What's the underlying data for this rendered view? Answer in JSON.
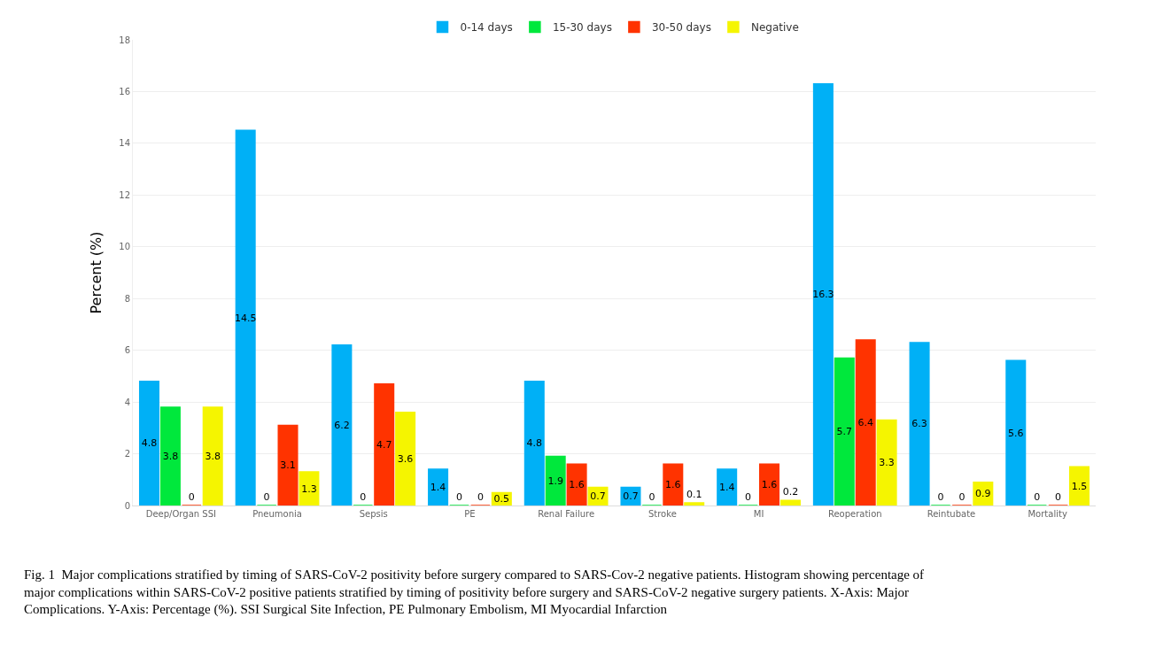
{
  "chart_data": {
    "type": "bar",
    "categories": [
      "Deep/Organ SSI",
      "Pneumonia",
      "Sepsis",
      "PE",
      "Renal Failure",
      "Stroke",
      "MI",
      "Reoperation",
      "Reintubate",
      "Mortality"
    ],
    "series": [
      {
        "name": "0-14 days",
        "color": "#00b0f6",
        "values": [
          4.8,
          14.5,
          6.2,
          1.4,
          4.8,
          0.7,
          1.4,
          16.3,
          6.3,
          5.6
        ]
      },
      {
        "name": "15-30 days",
        "color": "#00e83c",
        "values": [
          3.8,
          0,
          0,
          0,
          1.9,
          0,
          0,
          5.7,
          0,
          0
        ]
      },
      {
        "name": "30-50 days",
        "color": "#ff3300",
        "values": [
          0,
          3.1,
          4.7,
          0,
          1.6,
          1.6,
          1.6,
          6.4,
          0,
          0
        ]
      },
      {
        "name": "Negative",
        "color": "#f5f500",
        "values": [
          3.8,
          1.3,
          3.6,
          0.5,
          0.7,
          0.1,
          0.2,
          3.3,
          0.9,
          1.5
        ]
      }
    ],
    "ylabel": "Percent (%)",
    "ylim": [
      0,
      18
    ],
    "yticks": [
      0,
      2,
      4,
      6,
      8,
      10,
      12,
      14,
      16,
      18
    ],
    "grid": "y",
    "legend": "top",
    "data_labels": true,
    "annotations": [
      "Fig. 1  Major complications stratified by timing of SARS-CoV-2 positivity before surgery compared to SARS-Cov-2 negative patients. Histogram showing percentage of major complications within SARS-CoV-2 positive patients stratified by timing of positivity before surgery and SARS-CoV-2 negative surgery patients. X-Axis: Major Complications. Y-Axis: Percentage (%). SSI Surgical Site Infection, PE Pulmonary Embolism, MI Myocardial Infarction"
    ]
  }
}
